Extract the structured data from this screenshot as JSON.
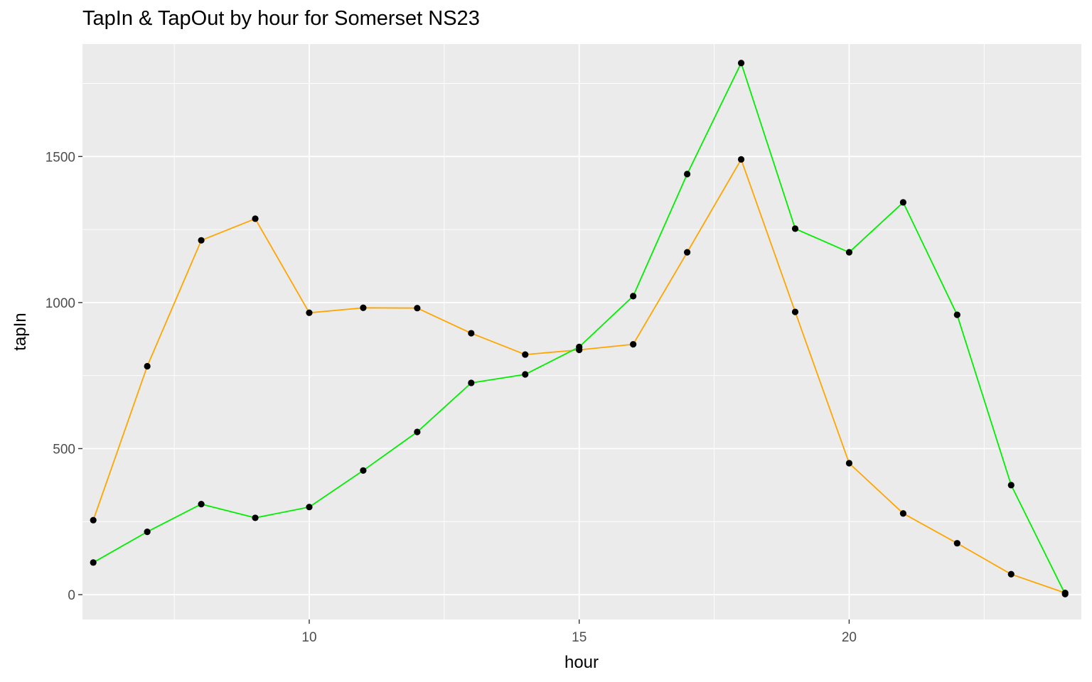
{
  "chart_data": {
    "type": "line",
    "title": "TapIn & TapOut by hour for Somerset NS23",
    "xlabel": "hour",
    "ylabel": "tapIn",
    "xlim": [
      5.8,
      24.3
    ],
    "ylim": [
      -85,
      1885
    ],
    "x_ticks": [
      10,
      15,
      20
    ],
    "x_minor": [
      7.5,
      12.5,
      17.5,
      22.5
    ],
    "y_ticks": [
      0,
      500,
      1000,
      1500
    ],
    "y_minor": [
      250,
      750,
      1250,
      1750
    ],
    "grid": true,
    "legend": "none",
    "panel_color": "#ebebeb",
    "point_color": "#000000",
    "x": [
      6,
      7,
      8,
      9,
      10,
      11,
      12,
      13,
      14,
      15,
      16,
      17,
      18,
      19,
      20,
      21,
      22,
      23,
      24
    ],
    "series": [
      {
        "color": "#ffa500",
        "values": [
          255,
          782,
          1213,
          1287,
          965,
          982,
          981,
          895,
          822,
          838,
          857,
          1172,
          1490,
          968,
          450,
          278,
          176,
          70,
          6
        ]
      },
      {
        "color": "#00ee00",
        "values": [
          110,
          215,
          310,
          263,
          300,
          425,
          557,
          725,
          754,
          848,
          1022,
          1440,
          1820,
          1253,
          1172,
          1343,
          958,
          375,
          2
        ]
      }
    ]
  }
}
